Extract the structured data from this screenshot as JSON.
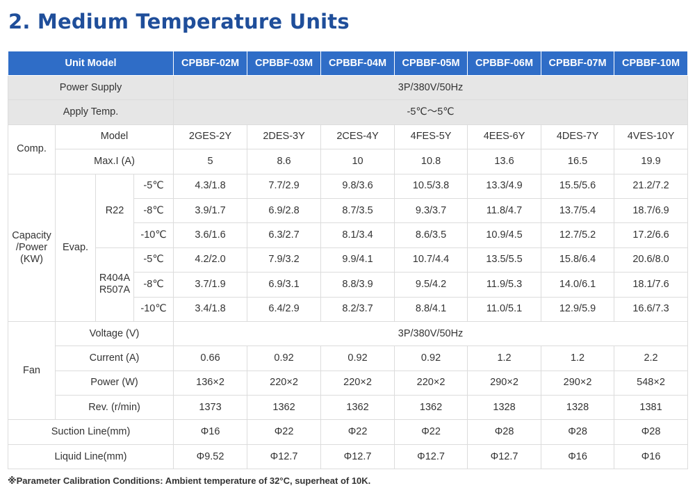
{
  "title": "2. Medium Temperature Units",
  "table": {
    "header_label": "Unit Model",
    "models": [
      "CPBBF-02M",
      "CPBBF-03M",
      "CPBBF-04M",
      "CPBBF-05M",
      "CPBBF-06M",
      "CPBBF-07M",
      "CPBBF-10M"
    ],
    "power_supply": {
      "label": "Power Supply",
      "value": "3P/380V/50Hz"
    },
    "apply_temp": {
      "label": "Apply Temp.",
      "value": "-5℃～5℃"
    },
    "comp": {
      "label": "Comp.",
      "model": {
        "label": "Model",
        "values": [
          "2GES-2Y",
          "2DES-3Y",
          "2CES-4Y",
          "4FES-5Y",
          "4EES-6Y",
          "4DES-7Y",
          "4VES-10Y"
        ]
      },
      "max_i": {
        "label": "Max.I (A)",
        "values": [
          "5",
          "8.6",
          "10",
          "10.8",
          "13.6",
          "16.5",
          "19.9"
        ]
      }
    },
    "capacity": {
      "label_line1": "Capacity",
      "label_line2": "/Power",
      "label_line3": "(KW)",
      "evap_label": "Evap.",
      "r22": {
        "label": "R22",
        "rows": [
          {
            "temp": "-5℃",
            "values": [
              "4.3/1.8",
              "7.7/2.9",
              "9.8/3.6",
              "10.5/3.8",
              "13.3/4.9",
              "15.5/5.6",
              "21.2/7.2"
            ]
          },
          {
            "temp": "-8℃",
            "values": [
              "3.9/1.7",
              "6.9/2.8",
              "8.7/3.5",
              "9.3/3.7",
              "11.8/4.7",
              "13.7/5.4",
              "18.7/6.9"
            ]
          },
          {
            "temp": "-10℃",
            "values": [
              "3.6/1.6",
              "6.3/2.7",
              "8.1/3.4",
              "8.6/3.5",
              "10.9/4.5",
              "12.7/5.2",
              "17.2/6.6"
            ]
          }
        ]
      },
      "r404a": {
        "label_line1": "R404A",
        "label_line2": "R507A",
        "rows": [
          {
            "temp": "-5℃",
            "values": [
              "4.2/2.0",
              "7.9/3.2",
              "9.9/4.1",
              "10.7/4.4",
              "13.5/5.5",
              "15.8/6.4",
              "20.6/8.0"
            ]
          },
          {
            "temp": "-8℃",
            "values": [
              "3.7/1.9",
              "6.9/3.1",
              "8.8/3.9",
              "9.5/4.2",
              "11.9/5.3",
              "14.0/6.1",
              "18.1/7.6"
            ]
          },
          {
            "temp": "-10℃",
            "values": [
              "3.4/1.8",
              "6.4/2.9",
              "8.2/3.7",
              "8.8/4.1",
              "11.0/5.1",
              "12.9/5.9",
              "16.6/7.3"
            ]
          }
        ]
      }
    },
    "fan": {
      "label": "Fan",
      "voltage": {
        "label": "Voltage (V)",
        "value": "3P/380V/50Hz"
      },
      "current": {
        "label": "Current (A)",
        "values": [
          "0.66",
          "0.92",
          "0.92",
          "0.92",
          "1.2",
          "1.2",
          "2.2"
        ]
      },
      "power": {
        "label": "Power (W)",
        "values": [
          "136×2",
          "220×2",
          "220×2",
          "220×2",
          "290×2",
          "290×2",
          "548×2"
        ]
      },
      "rev": {
        "label": "Rev. (r/min)",
        "values": [
          "1373",
          "1362",
          "1362",
          "1362",
          "1328",
          "1328",
          "1381"
        ]
      }
    },
    "suction_line": {
      "label": "Suction Line(mm)",
      "values": [
        "Φ16",
        "Φ22",
        "Φ22",
        "Φ22",
        "Φ28",
        "Φ28",
        "Φ28"
      ]
    },
    "liquid_line": {
      "label": "Liquid Line(mm)",
      "values": [
        "Φ9.52",
        "Φ12.7",
        "Φ12.7",
        "Φ12.7",
        "Φ12.7",
        "Φ16",
        "Φ16"
      ]
    }
  },
  "note": "※Parameter Calibration Conditions: Ambient temperature of 32°C, superheat of 10K."
}
